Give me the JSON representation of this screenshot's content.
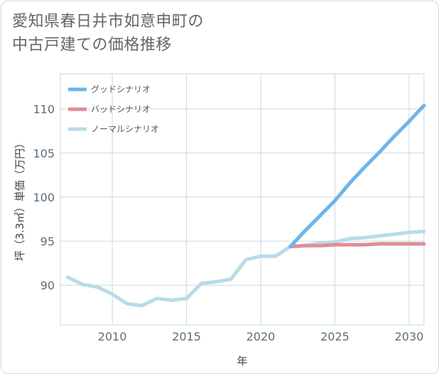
{
  "title_lines": [
    "愛知県春日井市如意申町の",
    "中古戸建ての価格推移"
  ],
  "chart_data": {
    "type": "line",
    "xlabel": "年",
    "ylabel": "坪（3.3㎡）単価（万円）",
    "xlim": [
      2006.5,
      2031
    ],
    "ylim": [
      85.5,
      114
    ],
    "x_ticks": [
      2010,
      2015,
      2020,
      2025,
      2030
    ],
    "y_ticks": [
      90,
      95,
      100,
      105,
      110
    ],
    "legend_position": "top-left",
    "series": [
      {
        "name": "グッドシナリオ",
        "color": "#6db5ea",
        "x": [
          2022,
          2023,
          2024,
          2025,
          2026,
          2027,
          2028,
          2029,
          2030,
          2031
        ],
        "values": [
          94.4,
          96.2,
          97.9,
          99.6,
          101.6,
          103.4,
          105.1,
          106.9,
          108.6,
          110.4
        ]
      },
      {
        "name": "バッドシナリオ",
        "color": "#de8e96",
        "x": [
          2022,
          2023,
          2024,
          2025,
          2026,
          2027,
          2028,
          2029,
          2030,
          2031
        ],
        "values": [
          94.4,
          94.5,
          94.5,
          94.6,
          94.6,
          94.6,
          94.7,
          94.7,
          94.7,
          94.7
        ]
      },
      {
        "name": "ノーマルシナリオ",
        "color": "#b8dbe8",
        "x": [
          2007,
          2008,
          2009,
          2010,
          2011,
          2012,
          2013,
          2014,
          2015,
          2016,
          2017,
          2018,
          2019,
          2020,
          2021,
          2022,
          2023,
          2024,
          2025,
          2026,
          2027,
          2028,
          2029,
          2030,
          2031
        ],
        "values": [
          90.9,
          90.1,
          89.8,
          89.0,
          87.9,
          87.7,
          88.5,
          88.3,
          88.5,
          90.2,
          90.4,
          90.7,
          92.9,
          93.3,
          93.3,
          94.4,
          94.5,
          94.8,
          94.9,
          95.3,
          95.4,
          95.6,
          95.8,
          96.0,
          96.1
        ]
      }
    ]
  }
}
